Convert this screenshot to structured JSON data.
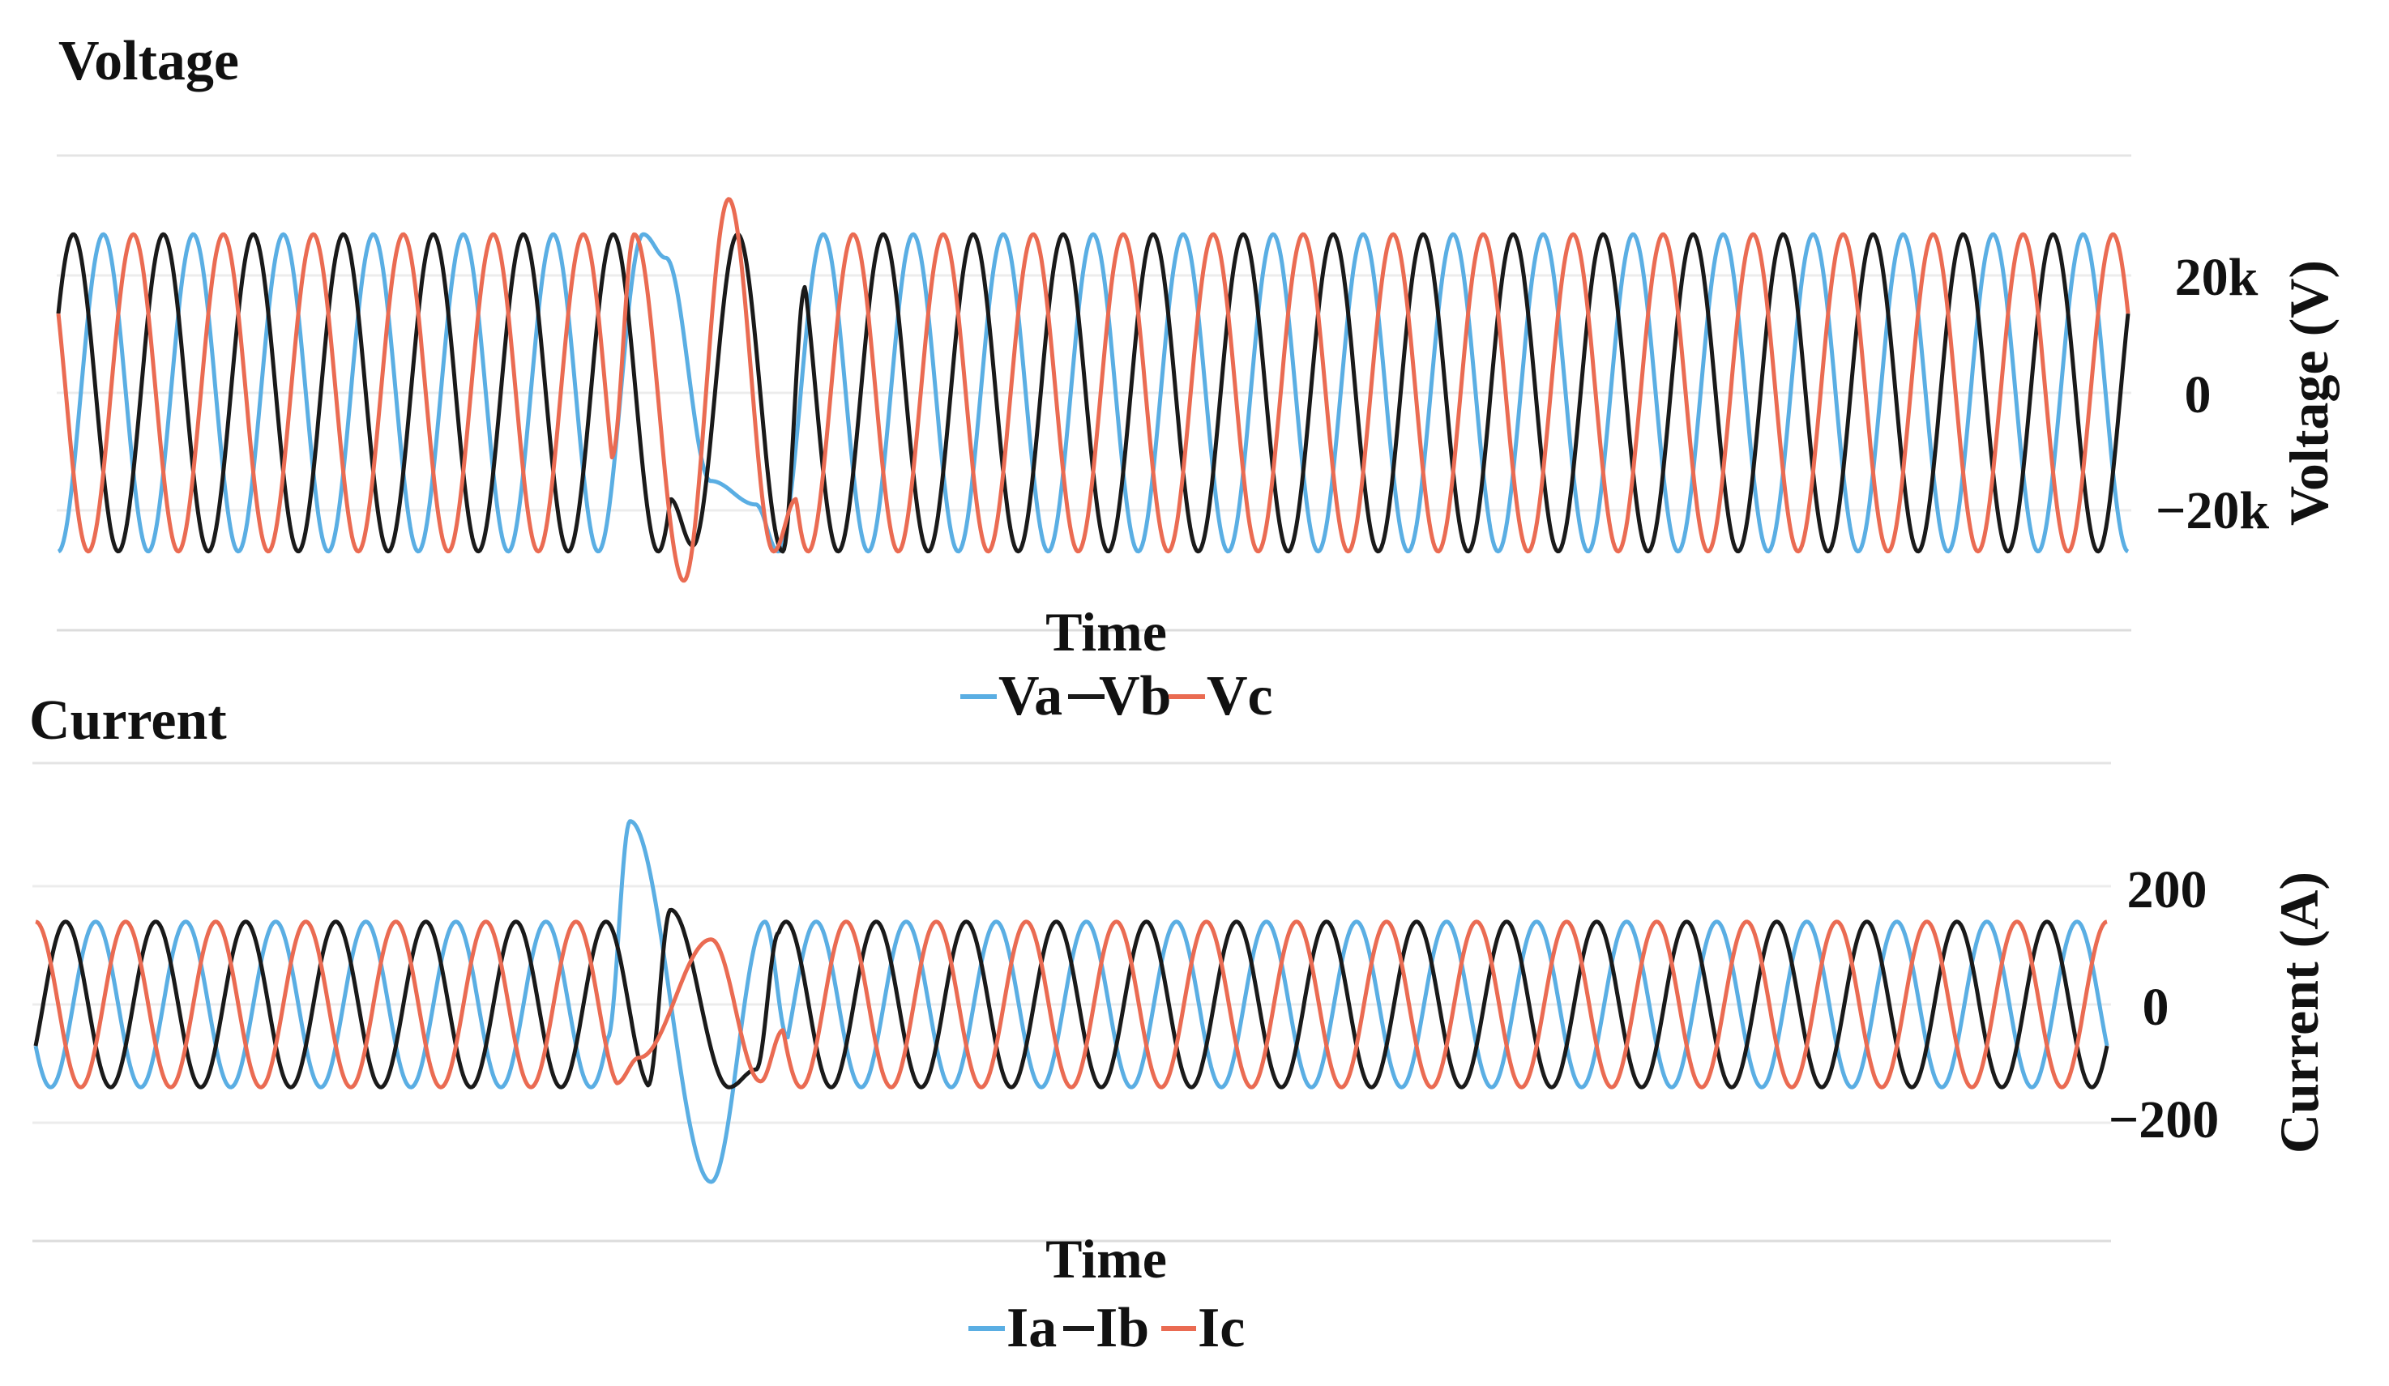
{
  "chart_data": [
    {
      "type": "line",
      "title": "Voltage",
      "xlabel": "Time",
      "ylabel": "Voltage (V)",
      "y_ticks": [
        {
          "value": 20000,
          "label": "20k"
        },
        {
          "value": 0,
          "label": "0"
        },
        {
          "value": -20000,
          "label": "−20k"
        }
      ],
      "ylim": [
        -40000,
        40000
      ],
      "cycles": 23,
      "fault_at_cycle": 7.0,
      "legend": {
        "placement": "bottom-center"
      },
      "grid": true,
      "series": [
        {
          "name": "Va",
          "color": "#5aaee3",
          "amplitude": 27000,
          "phase_deg": -90,
          "fault": [
            {
              "cycle": 6.75,
              "value": 23000
            },
            {
              "cycle": 7.25,
              "value": -15000
            },
            {
              "cycle": 7.75,
              "value": -19000
            }
          ]
        },
        {
          "name": "Vb",
          "color": "#1a1a1a",
          "amplitude": 27000,
          "phase_deg": 30,
          "fault": [
            {
              "cycle": 7.05,
              "value": -26000
            },
            {
              "cycle": 7.55,
              "value": 27000
            },
            {
              "cycle": 8.05,
              "value": -27000
            }
          ]
        },
        {
          "name": "Vc",
          "color": "#ea6b52",
          "amplitude": 27000,
          "phase_deg": 150,
          "fault": [
            {
              "cycle": 6.4,
              "value": 27000
            },
            {
              "cycle": 6.95,
              "value": -32000
            },
            {
              "cycle": 7.45,
              "value": 33000
            },
            {
              "cycle": 7.95,
              "value": -27000
            }
          ]
        }
      ]
    },
    {
      "type": "line",
      "title": "Current",
      "xlabel": "Time",
      "ylabel": "Current (A)",
      "y_ticks": [
        {
          "value": 200,
          "label": "200"
        },
        {
          "value": 0,
          "label": "0"
        },
        {
          "value": -200,
          "label": "−200"
        }
      ],
      "ylim": [
        -400,
        400
      ],
      "cycles": 23,
      "fault_at_cycle": 7.0,
      "legend": {
        "placement": "bottom-center"
      },
      "grid": true,
      "series": [
        {
          "name": "Ia",
          "color": "#5aaee3",
          "amplitude": 140,
          "phase_deg": -150,
          "fault": [
            {
              "cycle": 6.6,
              "value": 310
            },
            {
              "cycle": 7.5,
              "value": -300
            },
            {
              "cycle": 8.1,
              "value": 140
            }
          ]
        },
        {
          "name": "Ib",
          "color": "#1a1a1a",
          "amplitude": 140,
          "phase_deg": -30,
          "fault": [
            {
              "cycle": 7.05,
              "value": 160
            },
            {
              "cycle": 7.7,
              "value": -140
            },
            {
              "cycle": 8.0,
              "value": -110
            }
          ]
        },
        {
          "name": "Ic",
          "color": "#ea6b52",
          "amplitude": 140,
          "phase_deg": 90,
          "fault": [
            {
              "cycle": 6.7,
              "value": -90
            },
            {
              "cycle": 7.5,
              "value": 110
            },
            {
              "cycle": 8.05,
              "value": -130
            }
          ]
        }
      ]
    }
  ]
}
